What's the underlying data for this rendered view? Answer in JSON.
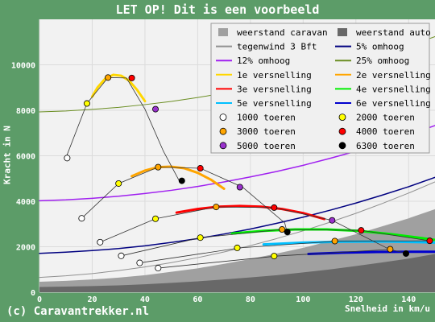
{
  "title": "LET OP! Dit is een voorbeeld",
  "credit": "(c) Caravantrekker.nl",
  "chart_data": {
    "type": "line",
    "xlabel": "Snelheid in km/u",
    "ylabel": "Kracht in N",
    "xlim": [
      0,
      150
    ],
    "ylim": [
      0,
      12000
    ],
    "xticks": [
      "0",
      "20",
      "40",
      "60",
      "80",
      "100",
      "120",
      "140"
    ],
    "yticks": [
      "0",
      "2000",
      "4000",
      "6000",
      "8000",
      "10000"
    ],
    "grid": true,
    "legend_position": "top-right",
    "colors": {
      "weerstand_caravan": "#a0a0a0",
      "weerstand_auto": "#686868",
      "tegenwind": "#909090",
      "omhoog5": "#000080",
      "omhoog12": "#a020f0",
      "omhoog25": "#6b8e23",
      "v1": "#ffd700",
      "v2": "#ffa500",
      "v3": "#ff0000",
      "v4": "#00ee00",
      "v5": "#00bfff",
      "v6": "#0000cd"
    },
    "legend": [
      {
        "label": "weerstand caravan",
        "kind": "box",
        "color": "#a0a0a0"
      },
      {
        "label": "weerstand auto",
        "kind": "box",
        "color": "#686868"
      },
      {
        "label": "tegenwind 3 Bft",
        "kind": "line",
        "color": "#909090"
      },
      {
        "label": "5% omhoog",
        "kind": "line",
        "color": "#000080"
      },
      {
        "label": "12% omhoog",
        "kind": "line",
        "color": "#a020f0"
      },
      {
        "label": "25% omhoog",
        "kind": "line",
        "color": "#6b8e23"
      },
      {
        "label": "1e versnelling",
        "kind": "line",
        "color": "#ffd700"
      },
      {
        "label": "2e versnelling",
        "kind": "line",
        "color": "#ffa500"
      },
      {
        "label": "3e versnelling",
        "kind": "line",
        "color": "#ff0000"
      },
      {
        "label": "4e versnelling",
        "kind": "line",
        "color": "#00ee00"
      },
      {
        "label": "5e versnelling",
        "kind": "line",
        "color": "#00bfff"
      },
      {
        "label": "6e versnelling",
        "kind": "line",
        "color": "#0000cd"
      },
      {
        "label": "1000 toeren",
        "kind": "dot",
        "color": "#ffffff"
      },
      {
        "label": "2000 toeren",
        "kind": "dot",
        "color": "#ffff00"
      },
      {
        "label": "3000 toeren",
        "kind": "dot",
        "color": "#ffa500"
      },
      {
        "label": "4000 toeren",
        "kind": "dot",
        "color": "#ff0000"
      },
      {
        "label": "5000 toeren",
        "kind": "dot",
        "color": "#9932cc"
      },
      {
        "label": "6300 toeren",
        "kind": "dot",
        "color": "#000000"
      }
    ],
    "areas": [
      {
        "name": "weerstand caravan",
        "color": "#a0a0a0",
        "x": [
          0,
          10,
          20,
          30,
          40,
          50,
          60,
          70,
          80,
          90,
          100,
          110,
          120,
          130,
          140,
          150
        ],
        "y": [
          460,
          500,
          560,
          640,
          750,
          900,
          1050,
          1250,
          1460,
          1700,
          1950,
          2250,
          2550,
          2900,
          3250,
          3650
        ]
      },
      {
        "name": "weerstand auto",
        "color": "#686868",
        "x": [
          0,
          10,
          20,
          30,
          40,
          50,
          60,
          70,
          80,
          90,
          100,
          110,
          120,
          130,
          140,
          150
        ],
        "y": [
          230,
          250,
          270,
          300,
          350,
          410,
          480,
          560,
          650,
          750,
          870,
          1000,
          1150,
          1310,
          1480,
          1680
        ]
      }
    ],
    "lines": [
      {
        "name": "tegenwind 3 Bft",
        "color": "#909090",
        "width": 1,
        "x": [
          0,
          10,
          20,
          30,
          40,
          50,
          60,
          70,
          80,
          90,
          100,
          110,
          120,
          130,
          140,
          150
        ],
        "y": [
          650,
          720,
          820,
          950,
          1110,
          1300,
          1520,
          1770,
          2050,
          2360,
          2700,
          3070,
          3470,
          3900,
          4360,
          4850
        ]
      },
      {
        "name": "5% omhoog",
        "color": "#000080",
        "width": 1.5,
        "x": [
          0,
          10,
          20,
          30,
          40,
          50,
          60,
          70,
          80,
          90,
          100,
          110,
          120,
          130,
          140,
          150
        ],
        "y": [
          1710,
          1760,
          1830,
          1920,
          2040,
          2190,
          2360,
          2560,
          2780,
          3030,
          3300,
          3600,
          3920,
          4270,
          4640,
          5050
        ]
      },
      {
        "name": "12% omhoog",
        "color": "#a020f0",
        "width": 1.5,
        "x": [
          0,
          10,
          20,
          30,
          40,
          50,
          60,
          70,
          80,
          90,
          100,
          110,
          120,
          130,
          140,
          150
        ],
        "y": [
          4020,
          4060,
          4130,
          4220,
          4340,
          4480,
          4650,
          4850,
          5070,
          5310,
          5580,
          5880,
          6200,
          6550,
          6920,
          7330
        ]
      },
      {
        "name": "25% omhoog",
        "color": "#6b8e23",
        "width": 1,
        "x": [
          0,
          10,
          20,
          30,
          40,
          50,
          60,
          70,
          80,
          90,
          100,
          110,
          120,
          130,
          140,
          150
        ],
        "y": [
          7930,
          7970,
          8040,
          8130,
          8250,
          8390,
          8560,
          8760,
          8980,
          9220,
          9490,
          9790,
          10110,
          10460,
          10830,
          11240
        ]
      },
      {
        "name": "1e versnelling",
        "color": "#ffd700",
        "width": 3,
        "x": [
          20,
          22,
          25,
          28,
          31,
          34,
          37,
          40
        ],
        "y": [
          8600,
          9000,
          9400,
          9560,
          9520,
          9300,
          8900,
          8400
        ]
      },
      {
        "name": "2e versnelling",
        "color": "#ffa500",
        "width": 3,
        "x": [
          35,
          40,
          45,
          50,
          55,
          60,
          65,
          70
        ],
        "y": [
          5100,
          5350,
          5500,
          5520,
          5450,
          5250,
          4950,
          4550
        ]
      },
      {
        "name": "3e versnelling",
        "color": "#ff0000",
        "width": 3,
        "x": [
          52,
          60,
          68,
          76,
          84,
          92,
          100,
          108
        ],
        "y": [
          3500,
          3660,
          3760,
          3790,
          3760,
          3660,
          3480,
          3220
        ]
      },
      {
        "name": "4e versnelling",
        "color": "#00ee00",
        "width": 3,
        "x": [
          73,
          85,
          97,
          109,
          121,
          133,
          145,
          150
        ],
        "y": [
          2580,
          2700,
          2760,
          2760,
          2700,
          2560,
          2380,
          2300
        ]
      },
      {
        "name": "5e versnelling",
        "color": "#00bfff",
        "width": 3,
        "x": [
          85,
          100,
          115,
          130,
          145,
          150
        ],
        "y": [
          2100,
          2180,
          2220,
          2230,
          2200,
          2180
        ]
      },
      {
        "name": "6e versnelling",
        "color": "#0000cd",
        "width": 3,
        "x": [
          102,
          115,
          128,
          141,
          150
        ],
        "y": [
          1680,
          1740,
          1770,
          1780,
          1780
        ]
      }
    ],
    "rpm_curves": [
      {
        "x": [
          10,
          18,
          26,
          33,
          40,
          47,
          53
        ],
        "y": [
          5900,
          8300,
          9440,
          9420,
          8050,
          6200,
          4900
        ]
      },
      {
        "x": [
          16,
          30,
          45,
          61,
          77,
          93,
          94
        ],
        "y": [
          3250,
          4780,
          5500,
          5450,
          4620,
          3050,
          2600
        ]
      },
      {
        "x": [
          23,
          44,
          67,
          89,
          111,
          133,
          140
        ],
        "y": [
          2200,
          3230,
          3750,
          3720,
          3160,
          1870,
          1700
        ]
      },
      {
        "x": [
          31,
          61,
          92,
          122,
          148
        ],
        "y": [
          1600,
          2400,
          2760,
          2720,
          2260
        ]
      },
      {
        "x": [
          38,
          76,
          113,
          148
        ],
        "y": [
          1290,
          1950,
          2250,
          2260
        ]
      },
      {
        "x": [
          45,
          90,
          134
        ],
        "y": [
          1060,
          1590,
          1890
        ]
      }
    ],
    "points": [
      {
        "x": 10.5,
        "y": 5900,
        "rpm": 1000
      },
      {
        "x": 18,
        "y": 8300,
        "rpm": 2000
      },
      {
        "x": 26,
        "y": 9440,
        "rpm": 3000
      },
      {
        "x": 35,
        "y": 9420,
        "rpm": 4000
      },
      {
        "x": 44,
        "y": 8050,
        "rpm": 5000
      },
      {
        "x": 54,
        "y": 4900,
        "rpm": 6300
      },
      {
        "x": 16,
        "y": 3250,
        "rpm": 1000
      },
      {
        "x": 30,
        "y": 4780,
        "rpm": 2000
      },
      {
        "x": 45,
        "y": 5500,
        "rpm": 3000
      },
      {
        "x": 61,
        "y": 5450,
        "rpm": 4000
      },
      {
        "x": 76,
        "y": 4620,
        "rpm": 5000
      },
      {
        "x": 94,
        "y": 2650,
        "rpm": 6300
      },
      {
        "x": 23,
        "y": 2200,
        "rpm": 1000
      },
      {
        "x": 44,
        "y": 3230,
        "rpm": 2000
      },
      {
        "x": 67,
        "y": 3750,
        "rpm": 3000
      },
      {
        "x": 89,
        "y": 3720,
        "rpm": 4000
      },
      {
        "x": 111,
        "y": 3160,
        "rpm": 5000
      },
      {
        "x": 31,
        "y": 1600,
        "rpm": 1000
      },
      {
        "x": 61,
        "y": 2400,
        "rpm": 2000
      },
      {
        "x": 92,
        "y": 2760,
        "rpm": 3000
      },
      {
        "x": 122,
        "y": 2720,
        "rpm": 4000
      },
      {
        "x": 38,
        "y": 1290,
        "rpm": 1000
      },
      {
        "x": 75,
        "y": 1950,
        "rpm": 2000
      },
      {
        "x": 112,
        "y": 2250,
        "rpm": 3000
      },
      {
        "x": 148,
        "y": 2260,
        "rpm": 4000
      },
      {
        "x": 45,
        "y": 1060,
        "rpm": 1000
      },
      {
        "x": 89,
        "y": 1590,
        "rpm": 2000
      },
      {
        "x": 133,
        "y": 1890,
        "rpm": 3000
      },
      {
        "x": 139,
        "y": 1700,
        "rpm": 6300
      }
    ]
  }
}
